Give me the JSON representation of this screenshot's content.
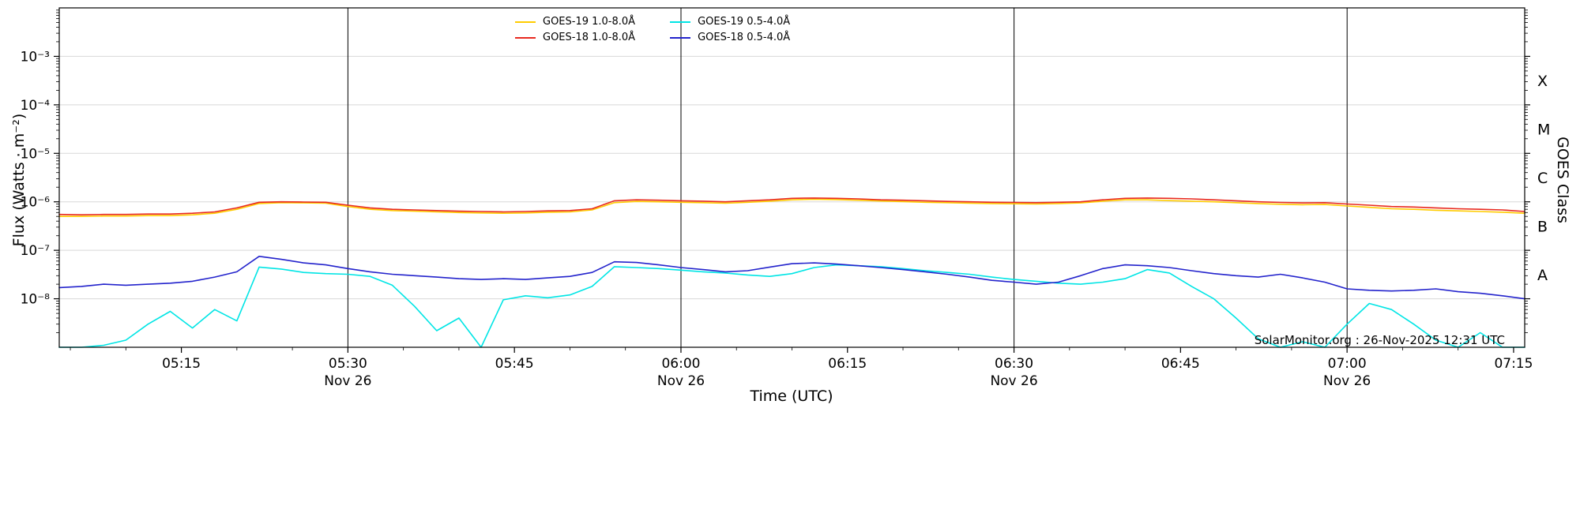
{
  "chart_data": {
    "type": "line",
    "xlabel": "Time (UTC)",
    "ylabel": "Flux (Watts · m⁻²)",
    "ylabel_right": "GOES Class",
    "watermark": "SolarMonitor.org : 26-Nov-2025 12:31 UTC",
    "legend_position": "top-center",
    "x_axis": {
      "unit": "minutes after 00:00 UTC on 26-Nov-2025",
      "lim": [
        304,
        436
      ],
      "major_ticks": [
        {
          "t": 315,
          "label": "05:15"
        },
        {
          "t": 330,
          "label": "05:30"
        },
        {
          "t": 345,
          "label": "05:45"
        },
        {
          "t": 360,
          "label": "06:00"
        },
        {
          "t": 375,
          "label": "06:15"
        },
        {
          "t": 390,
          "label": "06:30"
        },
        {
          "t": 405,
          "label": "06:45"
        },
        {
          "t": 420,
          "label": "07:00"
        },
        {
          "t": 435,
          "label": "07:15"
        }
      ],
      "minor_tick_step_min": 5,
      "day_marks": [
        {
          "t": 330,
          "label": "Nov 26"
        },
        {
          "t": 360,
          "label": "Nov 26"
        },
        {
          "t": 390,
          "label": "Nov 26"
        },
        {
          "t": 420,
          "label": "Nov 26"
        }
      ]
    },
    "y_axis": {
      "scale": "log10",
      "unit": "Watts per square metre",
      "lim_log10": [
        -9,
        -2
      ],
      "grid": true,
      "ticks": [
        {
          "exp": -3,
          "label": "10⁻³"
        },
        {
          "exp": -4,
          "label": "10⁻⁴"
        },
        {
          "exp": -5,
          "label": "10⁻⁵"
        },
        {
          "exp": -6,
          "label": "10⁻⁶"
        },
        {
          "exp": -7,
          "label": "10⁻⁷"
        },
        {
          "exp": -8,
          "label": "10⁻⁸"
        }
      ]
    },
    "goes_classes": [
      {
        "label": "X",
        "log10_mid": -3.5
      },
      {
        "label": "M",
        "log10_mid": -4.5
      },
      {
        "label": "C",
        "log10_mid": -5.5
      },
      {
        "label": "B",
        "log10_mid": -6.5
      },
      {
        "label": "A",
        "log10_mid": -7.5
      }
    ],
    "x_minutes": [
      304,
      306,
      308,
      310,
      312,
      314,
      316,
      318,
      320,
      322,
      324,
      326,
      328,
      330,
      332,
      334,
      336,
      338,
      340,
      342,
      344,
      346,
      348,
      350,
      352,
      354,
      356,
      358,
      360,
      362,
      364,
      366,
      368,
      370,
      372,
      374,
      376,
      378,
      380,
      382,
      384,
      386,
      388,
      390,
      392,
      394,
      396,
      398,
      400,
      402,
      404,
      406,
      408,
      410,
      412,
      414,
      416,
      418,
      420,
      422,
      424,
      426,
      428,
      430,
      432,
      434,
      436
    ],
    "series": [
      {
        "name": "GOES-19 1.0-8.0Å",
        "color": "#ffcc00",
        "values": [
          5e-07,
          5e-07,
          5.1e-07,
          5.1e-07,
          5.2e-07,
          5.2e-07,
          5.4e-07,
          5.8e-07,
          7e-07,
          9.2e-07,
          9.6e-07,
          9.5e-07,
          9.4e-07,
          8e-07,
          7e-07,
          6.6e-07,
          6.4e-07,
          6.2e-07,
          6e-07,
          5.9e-07,
          5.8e-07,
          5.9e-07,
          6.1e-07,
          6.2e-07,
          6.8e-07,
          9.6e-07,
          1.02e-06,
          1e-06,
          9.8e-07,
          9.6e-07,
          9.4e-07,
          9.8e-07,
          1.03e-06,
          1.1e-06,
          1.13e-06,
          1.11e-06,
          1.08e-06,
          1.04e-06,
          1.01e-06,
          9.8e-07,
          9.6e-07,
          9.4e-07,
          9.2e-07,
          9.1e-07,
          9e-07,
          9.2e-07,
          9.5e-07,
          1.03e-06,
          1.1e-06,
          1.1e-06,
          1.06e-06,
          1.03e-06,
          1e-06,
          9.6e-07,
          9.2e-07,
          8.9e-07,
          8.7e-07,
          8.8e-07,
          8.2e-07,
          7.7e-07,
          7.2e-07,
          7e-07,
          6.7e-07,
          6.5e-07,
          6.3e-07,
          6.1e-07,
          5.8e-07
        ]
      },
      {
        "name": "GOES-18 1.0-8.0Å",
        "color": "#e8291f",
        "values": [
          5.5e-07,
          5.4e-07,
          5.5e-07,
          5.5e-07,
          5.6e-07,
          5.6e-07,
          5.8e-07,
          6.2e-07,
          7.5e-07,
          9.8e-07,
          1e-06,
          9.9e-07,
          9.8e-07,
          8.5e-07,
          7.5e-07,
          7e-07,
          6.8e-07,
          6.6e-07,
          6.4e-07,
          6.3e-07,
          6.2e-07,
          6.3e-07,
          6.5e-07,
          6.6e-07,
          7.2e-07,
          1.05e-06,
          1.1e-06,
          1.08e-06,
          1.05e-06,
          1.03e-06,
          1e-06,
          1.05e-06,
          1.1e-06,
          1.18e-06,
          1.2e-06,
          1.18e-06,
          1.15e-06,
          1.1e-06,
          1.08e-06,
          1.05e-06,
          1.02e-06,
          1e-06,
          9.8e-07,
          9.7e-07,
          9.6e-07,
          9.8e-07,
          1e-06,
          1.1e-06,
          1.18e-06,
          1.2e-06,
          1.18e-06,
          1.15e-06,
          1.1e-06,
          1.05e-06,
          1e-06,
          9.7e-07,
          9.5e-07,
          9.6e-07,
          9e-07,
          8.5e-07,
          8e-07,
          7.8e-07,
          7.5e-07,
          7.2e-07,
          7e-07,
          6.8e-07,
          6.3e-07
        ]
      },
      {
        "name": "GOES-19 0.5-4.0Å",
        "color": "#00e5e5",
        "values": [
          1e-09,
          8e-10,
          1.1e-09,
          1.4e-09,
          3e-09,
          5.5e-09,
          2.5e-09,
          6e-09,
          3.5e-09,
          4.5e-08,
          4.1e-08,
          3.5e-08,
          3.3e-08,
          3.2e-08,
          2.9e-08,
          1.9e-08,
          7e-09,
          2.2e-09,
          4e-09,
          8e-10,
          9.5e-09,
          1.15e-08,
          1.05e-08,
          1.2e-08,
          1.8e-08,
          4.6e-08,
          4.4e-08,
          4.2e-08,
          3.9e-08,
          3.6e-08,
          3.4e-08,
          3.1e-08,
          2.9e-08,
          3.3e-08,
          4.4e-08,
          5e-08,
          4.8e-08,
          4.6e-08,
          4.2e-08,
          3.8e-08,
          3.5e-08,
          3.2e-08,
          2.8e-08,
          2.5e-08,
          2.3e-08,
          2.1e-08,
          2e-08,
          2.2e-08,
          2.6e-08,
          4e-08,
          3.4e-08,
          1.8e-08,
          1e-08,
          4e-09,
          1.5e-09,
          8e-10,
          1.3e-09,
          7e-10,
          3e-09,
          8e-09,
          6e-09,
          3e-09,
          1.4e-09,
          8e-10,
          2e-09,
          1e-09,
          7e-10
        ]
      },
      {
        "name": "GOES-18 0.5-4.0Å",
        "color": "#2323cc",
        "values": [
          1.7e-08,
          1.8e-08,
          2e-08,
          1.9e-08,
          2e-08,
          2.1e-08,
          2.3e-08,
          2.8e-08,
          3.6e-08,
          7.5e-08,
          6.5e-08,
          5.5e-08,
          5e-08,
          4.2e-08,
          3.6e-08,
          3.2e-08,
          3e-08,
          2.8e-08,
          2.6e-08,
          2.5e-08,
          2.6e-08,
          2.5e-08,
          2.7e-08,
          2.9e-08,
          3.5e-08,
          5.8e-08,
          5.6e-08,
          5e-08,
          4.4e-08,
          4e-08,
          3.6e-08,
          3.8e-08,
          4.5e-08,
          5.3e-08,
          5.5e-08,
          5.2e-08,
          4.8e-08,
          4.4e-08,
          4e-08,
          3.6e-08,
          3.2e-08,
          2.8e-08,
          2.4e-08,
          2.2e-08,
          2e-08,
          2.2e-08,
          3e-08,
          4.2e-08,
          5e-08,
          4.8e-08,
          4.4e-08,
          3.8e-08,
          3.3e-08,
          3e-08,
          2.8e-08,
          3.2e-08,
          2.7e-08,
          2.2e-08,
          1.6e-08,
          1.5e-08,
          1.45e-08,
          1.5e-08,
          1.6e-08,
          1.4e-08,
          1.3e-08,
          1.15e-08,
          1e-08
        ]
      }
    ]
  }
}
